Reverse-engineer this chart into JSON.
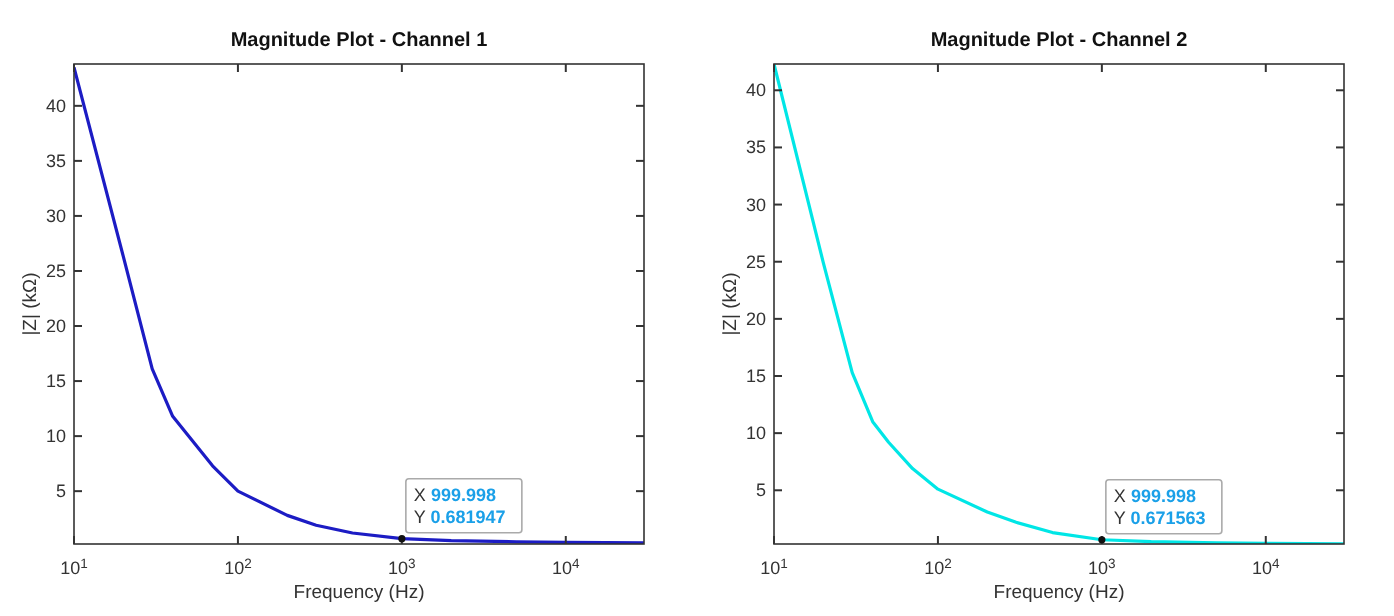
{
  "chart_data": [
    {
      "type": "line",
      "title": "Magnitude Plot - Channel 1",
      "xlabel": "Frequency (Hz)",
      "ylabel": "|Z| (kΩ)",
      "log": "x",
      "xlim": [
        10,
        30000
      ],
      "ylim": [
        0.2,
        43.8
      ],
      "xticks": [
        {
          "value": 10,
          "label": "10$^{1}$"
        },
        {
          "value": 100,
          "label": "10$^{2}$"
        },
        {
          "value": 1000,
          "label": "10$^{3}$"
        },
        {
          "value": 10000,
          "label": "10$^{4}$"
        }
      ],
      "yticks": [
        5,
        10,
        15,
        20,
        25,
        30,
        35,
        40
      ],
      "series": [
        {
          "color": "#1c1cc4",
          "x": [
            10,
            20,
            30,
            40,
            50,
            70,
            100,
            200,
            300,
            500,
            999.998,
            2000,
            5000,
            10000,
            30000
          ],
          "values": [
            43.5,
            26.3,
            16.1,
            11.8,
            10,
            7.3,
            5,
            2.8,
            1.9,
            1.2,
            0.681947,
            0.5,
            0.4,
            0.35,
            0.3
          ]
        }
      ],
      "annotations": [
        {
          "text": "X 999.998\nY 0.681947",
          "x": 999.998,
          "y": 0.681947
        }
      ]
    },
    {
      "type": "line",
      "title": "Magnitude Plot - Channel 2",
      "xlabel": "Frequency (Hz)",
      "ylabel": "|Z| (kΩ)",
      "log": "x",
      "xlim": [
        10,
        30000
      ],
      "ylim": [
        0.3,
        42.3
      ],
      "xticks": [
        {
          "value": 10,
          "label": "10$^{1}$"
        },
        {
          "value": 100,
          "label": "10$^{2}$"
        },
        {
          "value": 1000,
          "label": "10$^{3}$"
        },
        {
          "value": 10000,
          "label": "10$^{4}$"
        }
      ],
      "yticks": [
        5,
        10,
        15,
        20,
        25,
        30,
        35,
        40
      ],
      "series": [
        {
          "color": "#00e6e6",
          "x": [
            10,
            20,
            30,
            40,
            50,
            70,
            100,
            200,
            300,
            500,
            999.998,
            2000,
            5000,
            10000,
            30000
          ],
          "values": [
            42.3,
            24.9,
            15.3,
            11,
            9.2,
            6.9,
            5.1,
            3.1,
            2.2,
            1.3,
            0.671563,
            0.5,
            0.4,
            0.35,
            0.32
          ]
        }
      ],
      "annotations": [
        {
          "text": "X 999.998\nY 0.671563",
          "x": 999.998,
          "y": 0.671563
        }
      ]
    }
  ]
}
